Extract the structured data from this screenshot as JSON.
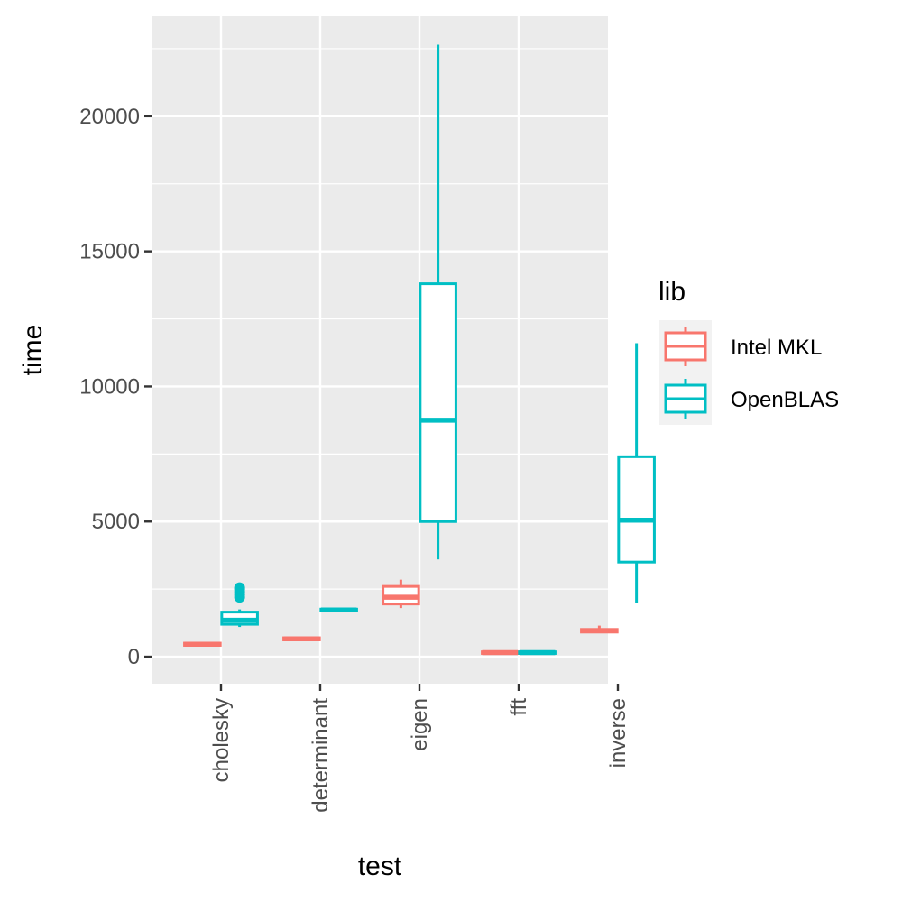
{
  "chart_data": {
    "type": "boxplot",
    "xlabel": "test",
    "ylabel": "time",
    "categories": [
      "cholesky",
      "determinant",
      "eigen",
      "fft",
      "inverse"
    ],
    "ylim": [
      -1000,
      23700
    ],
    "yticks": [
      0,
      5000,
      10000,
      15000,
      20000
    ],
    "ytick_labels": [
      "0",
      "5000",
      "10000",
      "15000",
      "20000"
    ],
    "grid": true,
    "legend": {
      "title": "lib",
      "position": "right"
    },
    "series": [
      {
        "name": "Intel MKL",
        "color": "#F8766D",
        "boxes": [
          {
            "category": "cholesky",
            "whisker_low": 380,
            "q1": 420,
            "median": 460,
            "q3": 500,
            "whisker_high": 540,
            "outliers": []
          },
          {
            "category": "determinant",
            "whisker_low": 580,
            "q1": 620,
            "median": 660,
            "q3": 700,
            "whisker_high": 740,
            "outliers": []
          },
          {
            "category": "eigen",
            "whisker_low": 1800,
            "q1": 1950,
            "median": 2200,
            "q3": 2600,
            "whisker_high": 2850,
            "outliers": []
          },
          {
            "category": "fft",
            "whisker_low": 100,
            "q1": 120,
            "median": 150,
            "q3": 180,
            "whisker_high": 200,
            "outliers": []
          },
          {
            "category": "inverse",
            "whisker_low": 870,
            "q1": 910,
            "median": 960,
            "q3": 1010,
            "whisker_high": 1150,
            "outliers": []
          }
        ]
      },
      {
        "name": "OpenBLAS",
        "color": "#00BFC4",
        "boxes": [
          {
            "category": "cholesky",
            "whisker_low": 1100,
            "q1": 1200,
            "median": 1350,
            "q3": 1650,
            "whisker_high": 1750,
            "outliers": [
              2200,
              2300,
              2400,
              2500,
              2550
            ]
          },
          {
            "category": "determinant",
            "whisker_low": 1680,
            "q1": 1700,
            "median": 1730,
            "q3": 1760,
            "whisker_high": 1780,
            "outliers": []
          },
          {
            "category": "eigen",
            "whisker_low": 3600,
            "q1": 5000,
            "median": 8750,
            "q3": 13800,
            "whisker_high": 22650,
            "outliers": []
          },
          {
            "category": "fft",
            "whisker_low": 100,
            "q1": 120,
            "median": 150,
            "q3": 180,
            "whisker_high": 200,
            "outliers": []
          },
          {
            "category": "inverse",
            "whisker_low": 2000,
            "q1": 3500,
            "median": 5050,
            "q3": 7400,
            "whisker_high": 11600,
            "outliers": []
          }
        ]
      }
    ]
  }
}
